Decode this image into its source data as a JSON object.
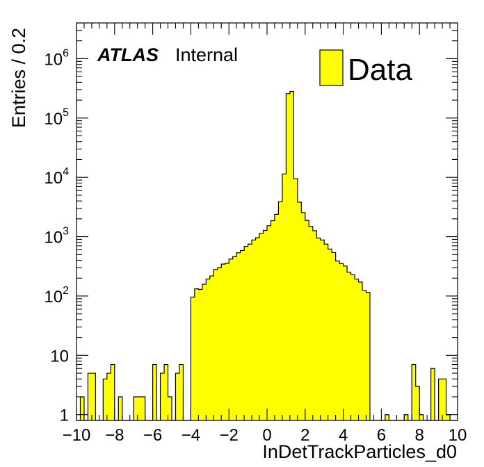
{
  "chart_data": {
    "type": "bar",
    "title": "",
    "xlabel": "InDetTrackParticles_d0",
    "ylabel": "Entries / 0.2",
    "xlim": [
      -10,
      10
    ],
    "ylim": [
      0.8,
      4000000
    ],
    "yscale": "log",
    "bin_width": 0.2,
    "bin_edges_start": -10,
    "legend": "top-right",
    "annotation": {
      "experiment": "ATLAS",
      "status": "Internal"
    },
    "x_ticks": [
      "−10",
      "−8",
      "−6",
      "−4",
      "−2",
      "0",
      "2",
      "4",
      "6",
      "8",
      "10"
    ],
    "y_ticks": [
      {
        "value": 1,
        "base": "1",
        "exp": ""
      },
      {
        "value": 10,
        "base": "10",
        "exp": ""
      },
      {
        "value": 100,
        "base": "10",
        "exp": "2"
      },
      {
        "value": 1000,
        "base": "10",
        "exp": "3"
      },
      {
        "value": 10000,
        "base": "10",
        "exp": "4"
      },
      {
        "value": 100000,
        "base": "10",
        "exp": "5"
      },
      {
        "value": 1000000,
        "base": "10",
        "exp": "6"
      }
    ],
    "series": [
      {
        "name": "Data",
        "color": "#ffff00",
        "values": [
          0,
          2,
          0,
          5,
          5,
          0,
          0,
          4,
          5,
          7,
          0,
          2,
          0,
          0,
          0,
          2,
          2,
          2,
          0,
          0,
          7,
          0,
          5,
          7,
          2,
          0,
          5,
          7,
          0,
          0,
          96,
          132,
          129,
          158,
          193,
          218,
          279,
          301,
          345,
          355,
          420,
          460,
          535,
          585,
          686,
          749,
          880,
          958,
          1140,
          1278,
          1530,
          1860,
          2380,
          3880,
          11400,
          257000,
          281000,
          9500,
          3820,
          2540,
          1880,
          1480,
          1260,
          950,
          880,
          750,
          619,
          540,
          390,
          352,
          320,
          252,
          230,
          193,
          172,
          125,
          115,
          0,
          0,
          0,
          0,
          1,
          0,
          0,
          0,
          0,
          1,
          0,
          7,
          3,
          1,
          0,
          0,
          6,
          0,
          4,
          4,
          1,
          0,
          0
        ]
      }
    ]
  }
}
